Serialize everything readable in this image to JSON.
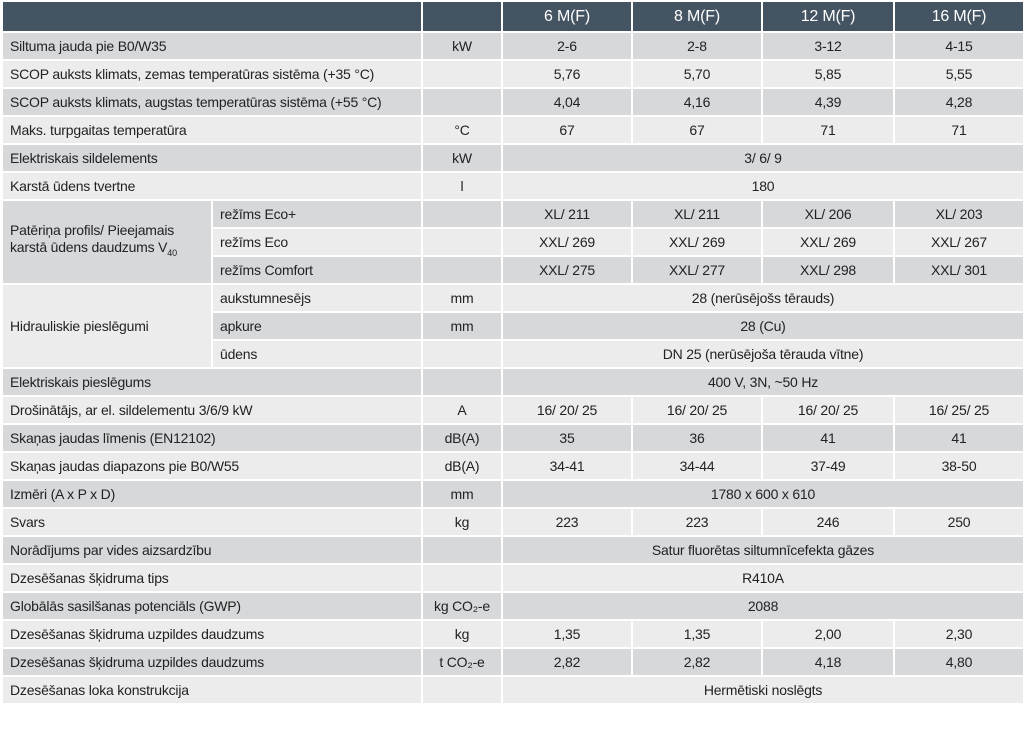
{
  "header": {
    "models": [
      "6 M(F)",
      "8 M(F)",
      "12 M(F)",
      "16 M(F)"
    ]
  },
  "rows": [
    {
      "label": "Siltuma jauda pie B0/W35",
      "unit": "kW",
      "values": [
        "2-6",
        "2-8",
        "3-12",
        "4-15"
      ]
    },
    {
      "label": "SCOP auksts klimats, zemas temperatūras sistēma (+35 °C)",
      "unit": "",
      "values": [
        "5,76",
        "5,70",
        "5,85",
        "5,55"
      ]
    },
    {
      "label": "SCOP auksts klimats, augstas temperatūras sistēma (+55 °C)",
      "unit": "",
      "values": [
        "4,04",
        "4,16",
        "4,39",
        "4,28"
      ]
    },
    {
      "label": "Maks. turpgaitas temperatūra",
      "unit": "°C",
      "values": [
        "67",
        "67",
        "71",
        "71"
      ]
    },
    {
      "label": "Elektriskais sildelements",
      "unit": "kW",
      "span": "3/ 6/ 9"
    },
    {
      "label": "Karstā ūdens tvertne",
      "unit": "l",
      "span": "180"
    },
    {
      "group": "Patēriņa profils/ Pieejamais karstā ūdens daudzums V",
      "group_sub": "40",
      "sub": [
        {
          "label": "režīms Eco+",
          "unit": "",
          "values": [
            "XL/ 211",
            "XL/ 211",
            "XL/ 206",
            "XL/ 203"
          ]
        },
        {
          "label": "režīms Eco",
          "unit": "",
          "values": [
            "XXL/ 269",
            "XXL/ 269",
            "XXL/ 269",
            "XXL/ 267"
          ]
        },
        {
          "label": "režīms Comfort",
          "unit": "",
          "values": [
            "XXL/ 275",
            "XXL/ 277",
            "XXL/ 298",
            "XXL/ 301"
          ]
        }
      ]
    },
    {
      "group": "Hidrauliskie pieslēgumi",
      "sub": [
        {
          "label": "aukstumnesējs",
          "unit": "mm",
          "span": "28 (nerūsējošs tērauds)"
        },
        {
          "label": "apkure",
          "unit": "mm",
          "span": "28 (Cu)"
        },
        {
          "label": "ūdens",
          "unit": "",
          "span": "DN 25 (nerūsējoša tērauda vītne)"
        }
      ]
    },
    {
      "label": "Elektriskais pieslēgums",
      "unit": "",
      "span": "400 V, 3N, ~50 Hz"
    },
    {
      "label": "Drošinātājs, ar el. sildelementu 3/6/9 kW",
      "unit": "A",
      "values": [
        "16/ 20/ 25",
        "16/ 20/ 25",
        "16/ 20/ 25",
        "16/ 25/ 25"
      ]
    },
    {
      "label": "Skaņas jaudas līmenis (EN12102)",
      "unit": "dB(A)",
      "values": [
        "35",
        "36",
        "41",
        "41"
      ]
    },
    {
      "label": "Skaņas jaudas diapazons pie B0/W55",
      "unit": "dB(A)",
      "values": [
        "34-41",
        "34-44",
        "37-49",
        "38-50"
      ]
    },
    {
      "label": "Izmēri (A x P x D)",
      "unit": "mm",
      "span": "1780 x 600 x 610"
    },
    {
      "label": "Svars",
      "unit": "kg",
      "values": [
        "223",
        "223",
        "246",
        "250"
      ]
    },
    {
      "label": "Norādījums par vides aizsardzību",
      "unit": "",
      "span": "Satur fluorētas siltumnīcefekta gāzes"
    },
    {
      "label": "Dzesēšanas šķidruma tips",
      "unit": "",
      "span": "R410A"
    },
    {
      "label": "Globālās sasilšanas potenciāls (GWP)",
      "unit": "kg CO₂-e",
      "span": "2088"
    },
    {
      "label": "Dzesēšanas šķidruma uzpildes daudzums",
      "unit": "kg",
      "values": [
        "1,35",
        "1,35",
        "2,00",
        "2,30"
      ]
    },
    {
      "label": "Dzesēšanas šķidruma uzpildes daudzums",
      "unit": "t CO₂-e",
      "values": [
        "2,82",
        "2,82",
        "4,18",
        "4,80"
      ]
    },
    {
      "label": "Dzesēšanas loka konstrukcija",
      "unit": "",
      "span": "Hermētiski noslēgts"
    }
  ]
}
